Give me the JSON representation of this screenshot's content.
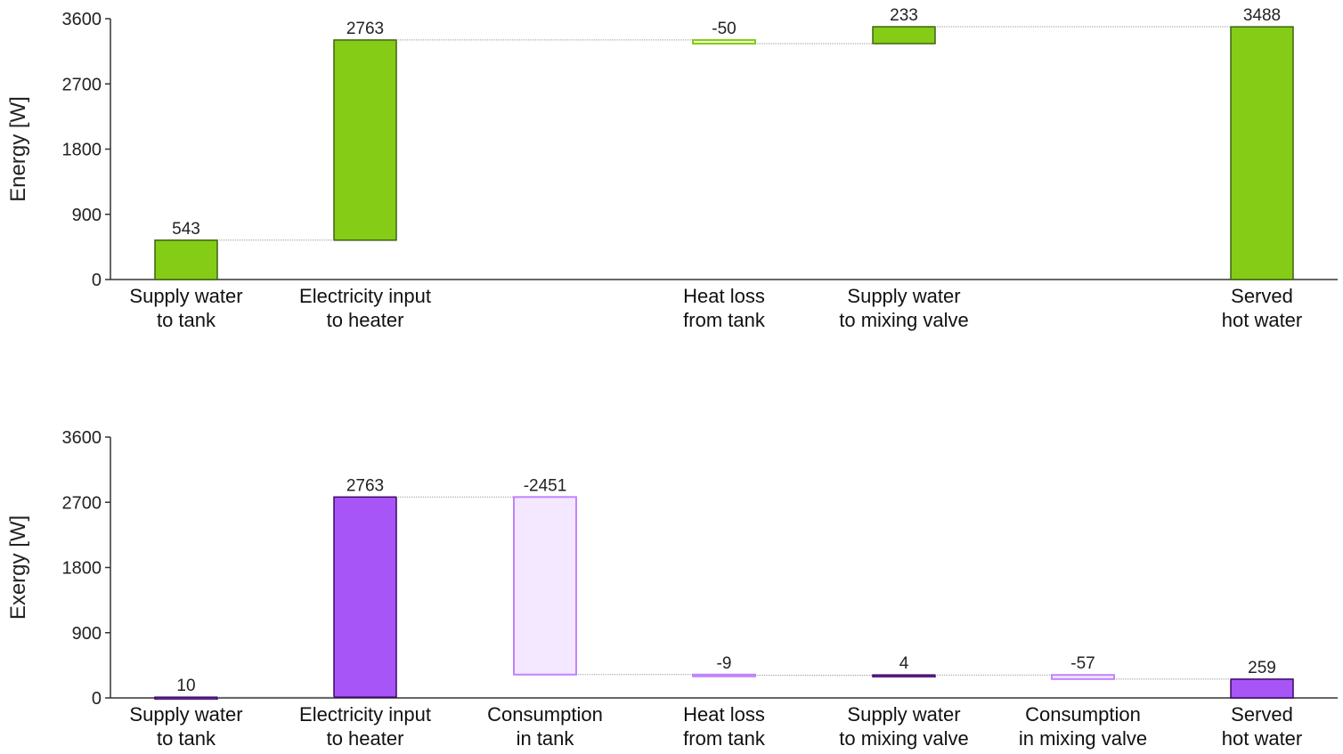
{
  "chart_data": [
    {
      "type": "waterfall",
      "ylabel": "Energy [W]",
      "ylim": [
        0,
        3600
      ],
      "yticks": [
        "0",
        "900",
        "1800",
        "2700",
        "3600"
      ],
      "categories": [
        {
          "line1": "Supply water",
          "line2": "to tank"
        },
        {
          "line1": "Electricity input",
          "line2": "to heater"
        },
        {
          "line1": "",
          "line2": ""
        },
        {
          "line1": "Heat loss",
          "line2": "from tank"
        },
        {
          "line1": "Supply water",
          "line2": "to mixing valve"
        },
        {
          "line1": "",
          "line2": ""
        },
        {
          "line1": "Served",
          "line2": "hot water"
        }
      ],
      "values": [
        543,
        2763,
        null,
        -50,
        233,
        null,
        3488
      ],
      "labels": [
        "543",
        "2763",
        "",
        "-50",
        "233",
        "",
        "3488"
      ],
      "kinds": [
        "total",
        "delta",
        "none",
        "delta",
        "delta",
        "none",
        "total"
      ],
      "colors": {
        "positive_fill": "#84cc16",
        "positive_stroke": "#3f6212",
        "negative_fill": "#ecfccb",
        "negative_stroke": "#84cc16"
      }
    },
    {
      "type": "waterfall",
      "ylabel": "Exergy [W]",
      "ylim": [
        0,
        3600
      ],
      "yticks": [
        "0",
        "900",
        "1800",
        "2700",
        "3600"
      ],
      "categories": [
        {
          "line1": "Supply water",
          "line2": "to tank"
        },
        {
          "line1": "Electricity input",
          "line2": "to heater"
        },
        {
          "line1": "Consumption",
          "line2": "in tank"
        },
        {
          "line1": "Heat loss",
          "line2": "from tank"
        },
        {
          "line1": "Supply water",
          "line2": "to mixing valve"
        },
        {
          "line1": "Consumption",
          "line2": "in mixing valve"
        },
        {
          "line1": "Served",
          "line2": "hot water"
        }
      ],
      "values": [
        10,
        2763,
        -2451,
        -9,
        4,
        -57,
        259
      ],
      "labels": [
        "10",
        "2763",
        "-2451",
        "-9",
        "4",
        "-57",
        "259"
      ],
      "kinds": [
        "total",
        "delta",
        "delta",
        "delta",
        "delta",
        "delta",
        "total"
      ],
      "colors": {
        "positive_fill": "#a855f7",
        "positive_stroke": "#3b0764",
        "negative_fill": "#f3e8ff",
        "negative_stroke": "#c084fc"
      }
    }
  ]
}
